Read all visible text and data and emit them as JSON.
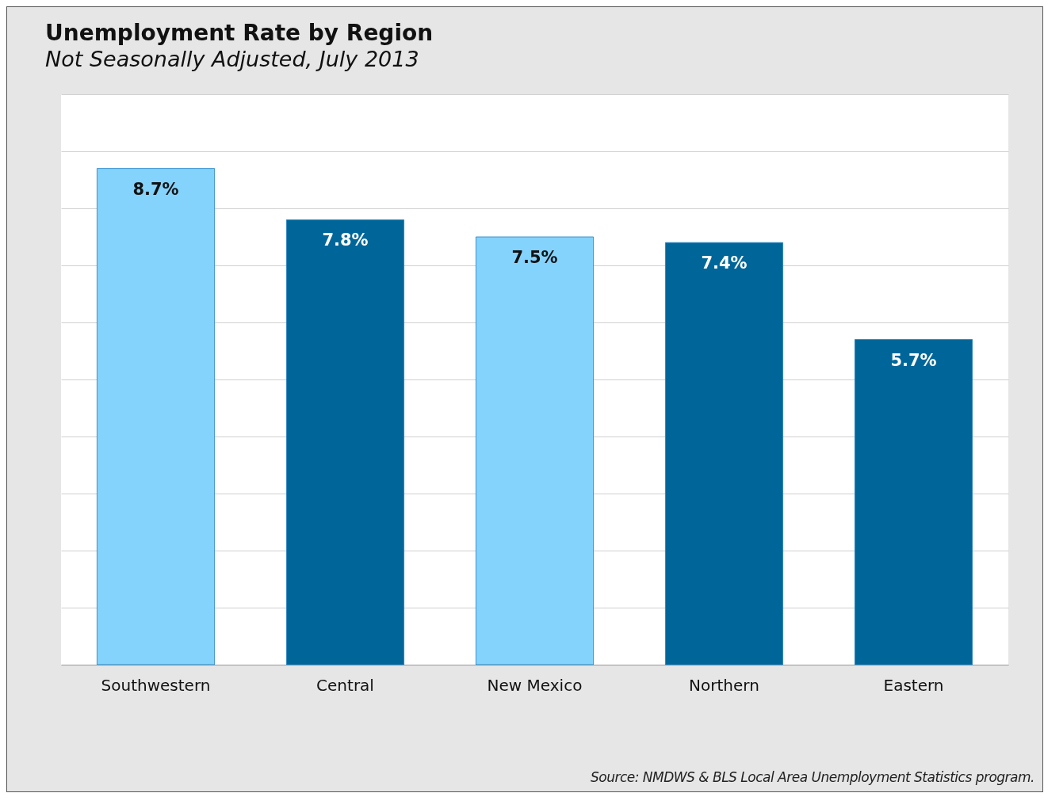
{
  "chart_data": {
    "type": "bar",
    "title": "Unemployment Rate by Region",
    "subtitle": "Not Seasonally Adjusted, July 2013",
    "categories": [
      "Southwestern",
      "Central",
      "New Mexico",
      "Northern",
      "Eastern"
    ],
    "values": [
      8.7,
      7.8,
      7.5,
      7.4,
      5.7
    ],
    "value_labels": [
      "8.7%",
      "7.8%",
      "7.5%",
      "7.4%",
      "5.7%"
    ],
    "colors": [
      "#83d3fd",
      "#006699",
      "#83d3fd",
      "#006699",
      "#006699"
    ],
    "ylim": [
      0,
      10
    ],
    "yticks": [
      {
        "value": 0,
        "label": null
      },
      {
        "value": 1,
        "label": null
      },
      {
        "value": 2,
        "label": null
      },
      {
        "value": 3,
        "label": null
      },
      {
        "value": 4,
        "label": null
      },
      {
        "value": 5,
        "label": null
      },
      {
        "value": 6,
        "label": null
      },
      {
        "value": 7,
        "label": null
      },
      {
        "value": 8,
        "label": null
      },
      {
        "value": 9,
        "label": null
      },
      {
        "value": 10,
        "label": null
      }
    ],
    "grid": "y",
    "tick_labels": "x",
    "annotations": [
      "Source: NMDWS & BLS Local Area Unemployment Statistics program."
    ]
  }
}
